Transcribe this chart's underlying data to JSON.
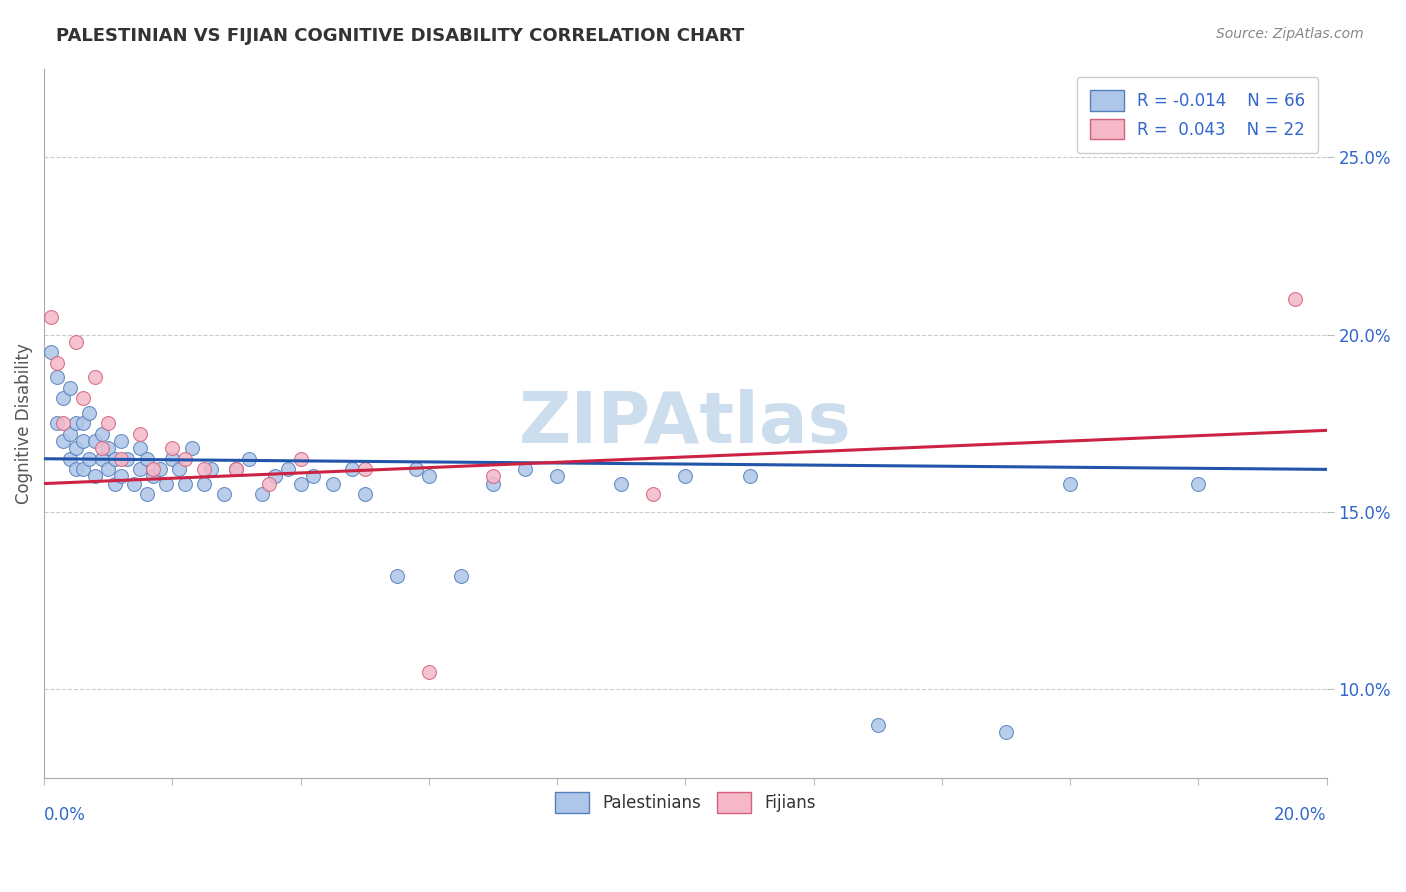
{
  "title": "PALESTINIAN VS FIJIAN COGNITIVE DISABILITY CORRELATION CHART",
  "source": "Source: ZipAtlas.com",
  "ylabel": "Cognitive Disability",
  "xlim": [
    0.0,
    0.2
  ],
  "ylim": [
    0.075,
    0.275
  ],
  "yticks": [
    0.1,
    0.15,
    0.2,
    0.25
  ],
  "ytick_labels": [
    "10.0%",
    "15.0%",
    "20.0%",
    "25.0%"
  ],
  "palestinian_R": "-0.014",
  "palestinian_N": "66",
  "fijian_R": "0.043",
  "fijian_N": "22",
  "palestinian_color": "#aec6e8",
  "fijian_color": "#f4b8c8",
  "palestinian_edge_color": "#5580bb",
  "fijian_edge_color": "#d4607a",
  "palestinian_line_color": "#2255aa",
  "fijian_line_color": "#cc2244",
  "background_color": "#ffffff",
  "grid_color": "#cccccc",
  "watermark_color": "#ccdded",
  "title_color": "#333333",
  "source_color": "#888888",
  "ylabel_color": "#555555",
  "tick_label_color": "#3366cc",
  "xtick_label_color": "#3366cc",
  "legend_text_color": "#3366cc",
  "bottom_legend_color": "#333333",
  "palestinian_x": [
    0.001,
    0.002,
    0.002,
    0.003,
    0.003,
    0.004,
    0.004,
    0.004,
    0.005,
    0.005,
    0.005,
    0.006,
    0.006,
    0.006,
    0.007,
    0.007,
    0.008,
    0.008,
    0.009,
    0.009,
    0.01,
    0.01,
    0.011,
    0.011,
    0.012,
    0.012,
    0.013,
    0.014,
    0.015,
    0.015,
    0.016,
    0.016,
    0.017,
    0.018,
    0.019,
    0.02,
    0.021,
    0.022,
    0.023,
    0.025,
    0.026,
    0.028,
    0.03,
    0.032,
    0.034,
    0.036,
    0.038,
    0.04,
    0.042,
    0.045,
    0.048,
    0.05,
    0.055,
    0.058,
    0.06,
    0.065,
    0.07,
    0.075,
    0.08,
    0.09,
    0.1,
    0.11,
    0.13,
    0.15,
    0.16,
    0.18
  ],
  "palestinian_y": [
    0.195,
    0.188,
    0.175,
    0.182,
    0.17,
    0.165,
    0.172,
    0.185,
    0.168,
    0.175,
    0.162,
    0.17,
    0.162,
    0.175,
    0.165,
    0.178,
    0.16,
    0.17,
    0.165,
    0.172,
    0.162,
    0.168,
    0.158,
    0.165,
    0.16,
    0.17,
    0.165,
    0.158,
    0.162,
    0.168,
    0.155,
    0.165,
    0.16,
    0.162,
    0.158,
    0.165,
    0.162,
    0.158,
    0.168,
    0.158,
    0.162,
    0.155,
    0.162,
    0.165,
    0.155,
    0.16,
    0.162,
    0.158,
    0.16,
    0.158,
    0.162,
    0.155,
    0.132,
    0.162,
    0.16,
    0.132,
    0.158,
    0.162,
    0.16,
    0.158,
    0.16,
    0.16,
    0.09,
    0.088,
    0.158,
    0.158
  ],
  "fijian_x": [
    0.001,
    0.002,
    0.003,
    0.005,
    0.006,
    0.008,
    0.009,
    0.01,
    0.012,
    0.015,
    0.017,
    0.02,
    0.022,
    0.025,
    0.03,
    0.035,
    0.04,
    0.05,
    0.06,
    0.07,
    0.095,
    0.195
  ],
  "fijian_y": [
    0.205,
    0.192,
    0.175,
    0.198,
    0.182,
    0.188,
    0.168,
    0.175,
    0.165,
    0.172,
    0.162,
    0.168,
    0.165,
    0.162,
    0.162,
    0.158,
    0.165,
    0.162,
    0.105,
    0.16,
    0.155,
    0.21
  ],
  "pal_trend_x0": 0.0,
  "pal_trend_y0": 0.165,
  "pal_trend_x1": 0.2,
  "pal_trend_y1": 0.162,
  "fij_trend_x0": 0.0,
  "fij_trend_y0": 0.158,
  "fij_trend_x1": 0.2,
  "fij_trend_y1": 0.173
}
